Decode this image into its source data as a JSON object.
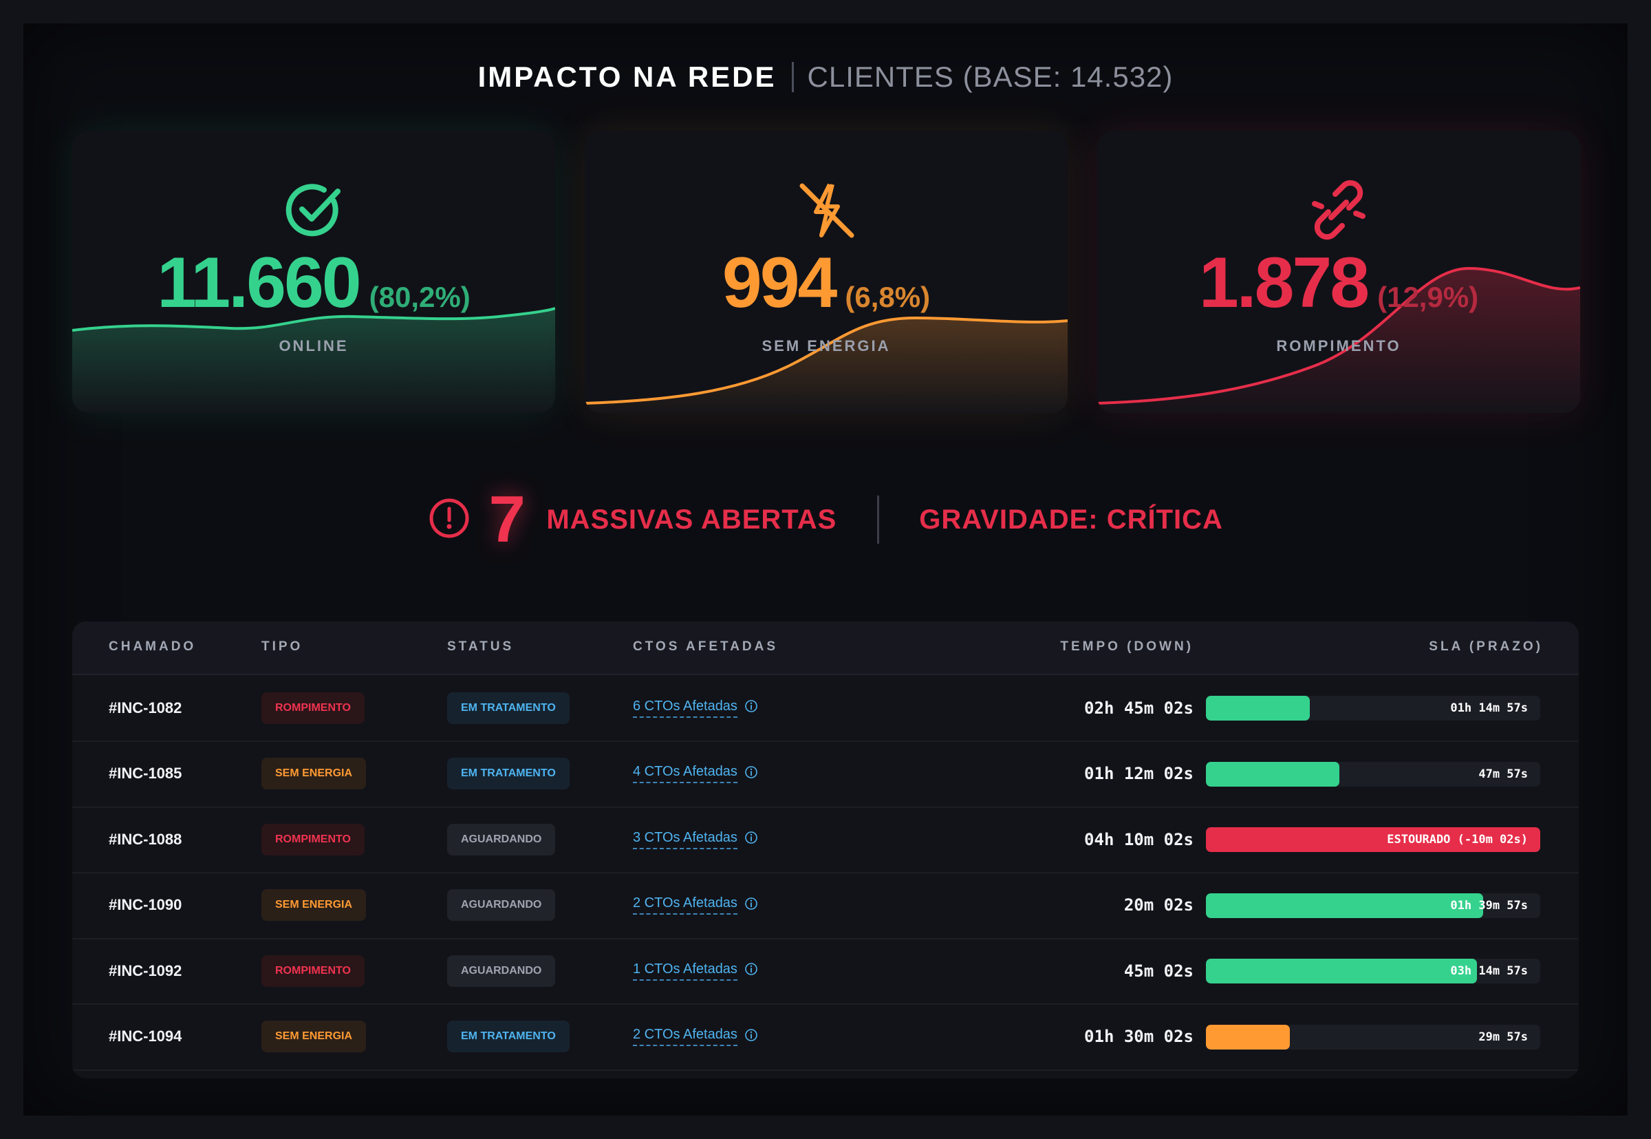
{
  "header": {
    "title": "IMPACTO NA REDE",
    "subtitle": "CLIENTES (BASE: 14.532)"
  },
  "cards": [
    {
      "id": "online",
      "value": "11.660",
      "percent": "(80,2%)",
      "label": "ONLINE",
      "icon": "check-circle-icon",
      "color": "#35d28e"
    },
    {
      "id": "energy",
      "value": "994",
      "percent": "(6,8%)",
      "label": "SEM ENERGIA",
      "icon": "power-off-icon",
      "color": "#ff9a33"
    },
    {
      "id": "break",
      "value": "1.878",
      "percent": "(12,9%)",
      "label": "ROMPIMENTO",
      "icon": "broken-link-icon",
      "color": "#e62e4a"
    }
  ],
  "alert": {
    "icon": "alert-circle-icon",
    "count": "7",
    "label": "MASSIVAS ABERTAS",
    "severity": "GRAVIDADE: CRÍTICA"
  },
  "table": {
    "headers": [
      "CHAMADO",
      "TIPO",
      "STATUS",
      "CTOS AFETADAS",
      "TEMPO (DOWN)",
      "SLA (PRAZO)"
    ],
    "rows": [
      {
        "id": "#INC-1082",
        "type": "ROMPIMENTO",
        "status": "EM TRATAMENTO",
        "ctos": "6 CTOs Afetadas",
        "time": "02h 45m 02s",
        "sla": "01h 14m 57s",
        "sla_progress": 0.31,
        "sla_color": "#35d28e"
      },
      {
        "id": "#INC-1085",
        "type": "SEM ENERGIA",
        "status": "EM TRATAMENTO",
        "ctos": "4 CTOs Afetadas",
        "time": "01h 12m 02s",
        "sla": "47m 57s",
        "sla_progress": 0.4,
        "sla_color": "#35d28e"
      },
      {
        "id": "#INC-1088",
        "type": "ROMPIMENTO",
        "status": "AGUARDANDO",
        "ctos": "3 CTOs Afetadas",
        "time": "04h 10m 02s",
        "sla": "ESTOURADO (-10m 02s)",
        "sla_progress": 1.0,
        "sla_color": "#e62e4a"
      },
      {
        "id": "#INC-1090",
        "type": "SEM ENERGIA",
        "status": "AGUARDANDO",
        "ctos": "2 CTOs Afetadas",
        "time": "20m 02s",
        "sla": "01h 39m 57s",
        "sla_progress": 0.83,
        "sla_color": "#35d28e"
      },
      {
        "id": "#INC-1092",
        "type": "ROMPIMENTO",
        "status": "AGUARDANDO",
        "ctos": "1 CTOs Afetadas",
        "time": "45m 02s",
        "sla": "03h 14m 57s",
        "sla_progress": 0.81,
        "sla_color": "#35d28e"
      },
      {
        "id": "#INC-1094",
        "type": "SEM ENERGIA",
        "status": "EM TRATAMENTO",
        "ctos": "2 CTOs Afetadas",
        "time": "01h 30m 02s",
        "sla": "29m 57s",
        "sla_progress": 0.25,
        "sla_color": "#ff9a33"
      }
    ]
  }
}
